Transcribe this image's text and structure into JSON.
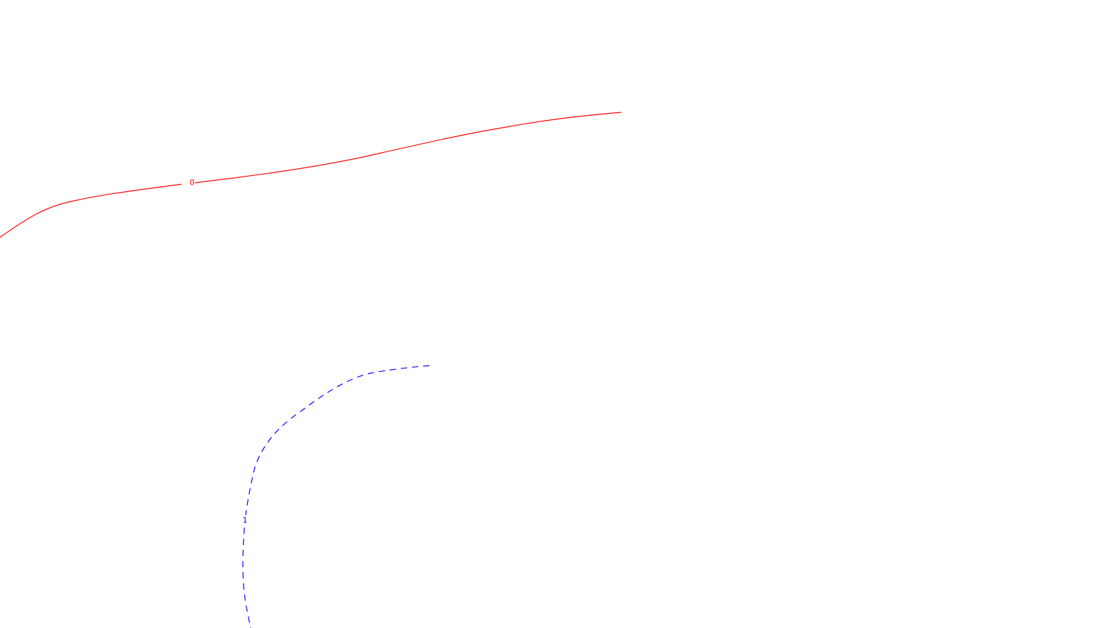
{
  "contours": [
    {
      "label": "0",
      "color": "#ff0000",
      "line_style": "solid"
    },
    {
      "label": "1",
      "color": "#0000ff",
      "line_style": "dashed"
    }
  ]
}
